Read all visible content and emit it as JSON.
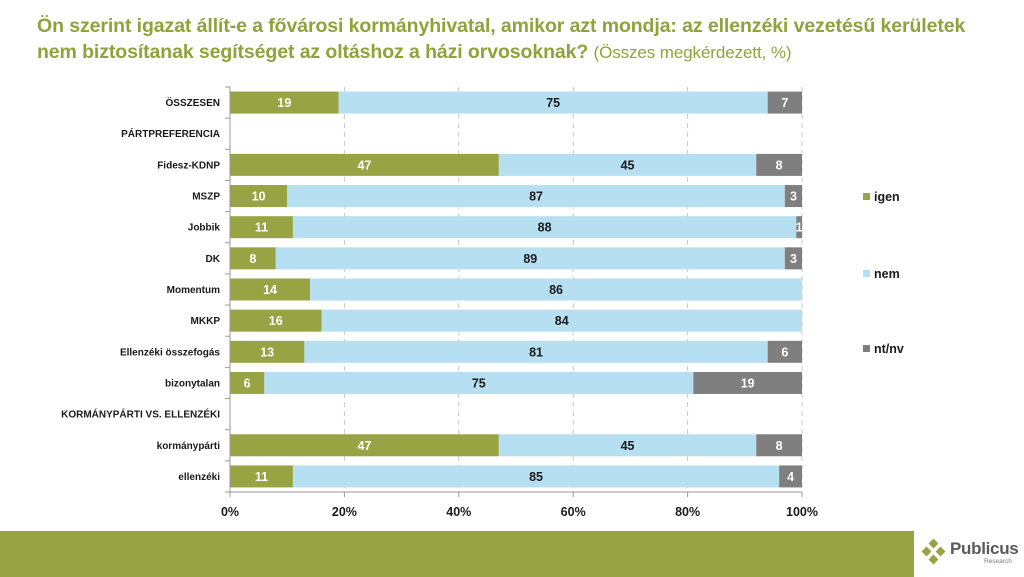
{
  "title": {
    "main": "Ön szerint igazat állít-e a fővárosi kormányhivatal, amikor azt mondja: az ellenzéki vezetésű kerületek nem biztosítanak segítséget az oltáshoz a házi orvosoknak?",
    "subtitle": "(Összes megkérdezett, %)"
  },
  "colors": {
    "igen": "#98a343",
    "nem": "#b7dff2",
    "ntnv": "#7f7f7f",
    "title": "#8fa33a",
    "footer": "#98a343"
  },
  "logo": {
    "name": "Publicus",
    "sub": "Research"
  },
  "chart_data": {
    "type": "bar",
    "orientation": "horizontal",
    "stacked": true,
    "title": "Ön szerint igazat állít-e a fővárosi kormányhivatal, amikor azt mondja: az ellenzéki vezetésű kerületek nem biztosítanak segítséget az oltáshoz a házi orvosoknak? (Összes megkérdezett, %)",
    "xlabel": "",
    "ylabel": "",
    "xlim": [
      0,
      100
    ],
    "x_ticks": [
      "0%",
      "20%",
      "40%",
      "60%",
      "80%",
      "100%"
    ],
    "grid": "vertical dashed",
    "legend_position": "right",
    "categories": [
      "ÖSSZESEN",
      "PÁRTPREFERENCIA",
      "Fidesz-KDNP",
      "MSZP",
      "Jobbik",
      "DK",
      "Momentum",
      "MKKP",
      "Ellenzéki összefogás",
      "bizonytalan",
      "KORMÁNYPÁRTI VS. ELLENZÉKI",
      "kormánypárti",
      "ellenzéki"
    ],
    "series": [
      {
        "name": "igen",
        "values": [
          19,
          null,
          47,
          10,
          11,
          8,
          14,
          16,
          13,
          6,
          null,
          47,
          11
        ]
      },
      {
        "name": "nem",
        "values": [
          75,
          null,
          45,
          87,
          88,
          89,
          86,
          84,
          81,
          75,
          null,
          45,
          85
        ]
      },
      {
        "name": "nt/nv",
        "values": [
          7,
          null,
          8,
          3,
          1,
          3,
          0,
          0,
          6,
          19,
          null,
          8,
          4
        ]
      }
    ]
  }
}
